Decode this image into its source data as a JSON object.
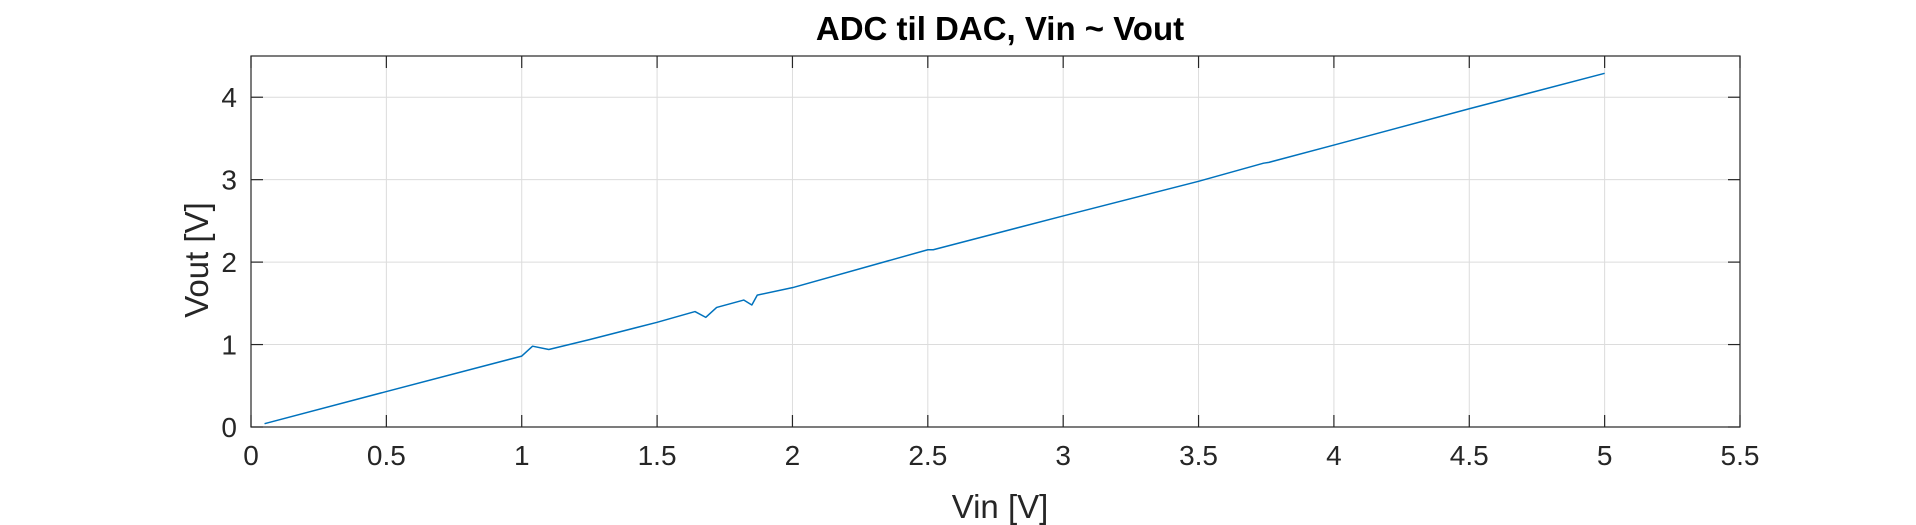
{
  "chart_data": {
    "type": "line",
    "title": "ADC til DAC, Vin ~ Vout",
    "xlabel": "Vin [V]",
    "ylabel": "Vout [V]",
    "xlim": [
      0,
      5.5
    ],
    "ylim": [
      0,
      4.5
    ],
    "xticks": [
      0,
      0.5,
      1,
      1.5,
      2,
      2.5,
      3,
      3.5,
      4,
      4.5,
      5,
      5.5
    ],
    "xtick_labels": [
      "0",
      "0.5",
      "1",
      "1.5",
      "2",
      "2.5",
      "3",
      "3.5",
      "4",
      "4.5",
      "5",
      "5.5"
    ],
    "yticks": [
      0,
      1,
      2,
      3,
      4
    ],
    "ytick_labels": [
      "0",
      "1",
      "2",
      "3",
      "4"
    ],
    "grid": true,
    "line_color": "#0072bd",
    "series": [
      {
        "x": [
          0.05,
          0.5,
          1.0,
          1.04,
          1.1,
          1.25,
          1.5,
          1.64,
          1.68,
          1.72,
          1.82,
          1.85,
          1.87,
          2.0,
          2.5,
          2.52,
          3.0,
          3.5,
          3.74,
          3.76,
          4.0,
          4.5,
          5.0
        ],
        "y": [
          0.04,
          0.43,
          0.86,
          0.98,
          0.94,
          1.06,
          1.27,
          1.4,
          1.33,
          1.45,
          1.54,
          1.48,
          1.6,
          1.69,
          2.15,
          2.15,
          2.56,
          2.98,
          3.2,
          3.21,
          3.42,
          3.86,
          4.29
        ]
      }
    ]
  }
}
